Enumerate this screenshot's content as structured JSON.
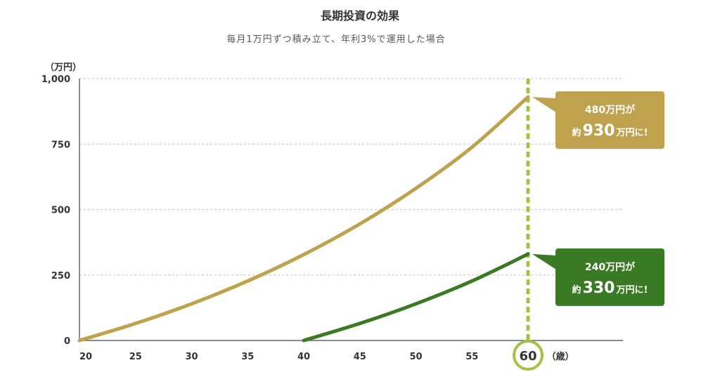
{
  "chart_data": {
    "type": "line",
    "title": "長期投資の効果",
    "subtitle": "毎月1万円ずつ積み立て、年利3%で運用した場合",
    "y_unit": "（万円）",
    "x_unit": "（歳）",
    "xlim": [
      20,
      69
    ],
    "ylim": [
      0,
      1000
    ],
    "x_ticks": [
      "20",
      "25",
      "30",
      "35",
      "40",
      "45",
      "50",
      "55"
    ],
    "y_ticks": [
      "0",
      "250",
      "500",
      "750",
      "1,000"
    ],
    "y_tick_values": [
      0,
      250,
      500,
      750,
      1000
    ],
    "x_tick_values": [
      20,
      25,
      30,
      35,
      40,
      45,
      50,
      55
    ],
    "highlight_x": 60,
    "highlight_label": "60",
    "grid": true,
    "series": [
      {
        "color": "#bfa24e",
        "x": [
          20,
          25,
          30,
          35,
          40,
          45,
          50,
          55,
          60
        ],
        "y": [
          0,
          65,
          140,
          227,
          328,
          445,
          581,
          738,
          930
        ]
      },
      {
        "color": "#3a7a25",
        "x": [
          40,
          45,
          50,
          55,
          60
        ],
        "y": [
          0,
          65,
          140,
          227,
          330
        ]
      }
    ],
    "callouts": [
      {
        "color": "#bfa24e",
        "line1": "480万円が",
        "prefix": "約",
        "value": "930",
        "suffix": "万円に!"
      },
      {
        "color": "#3a7a25",
        "line1": "240万円が",
        "prefix": "約",
        "value": "330",
        "suffix": "万円に!"
      }
    ],
    "colors": {
      "axis": "#666666",
      "grid": "#cccccc",
      "highlight_line": "#a5c247",
      "highlight_circle": "#a5c247"
    }
  }
}
